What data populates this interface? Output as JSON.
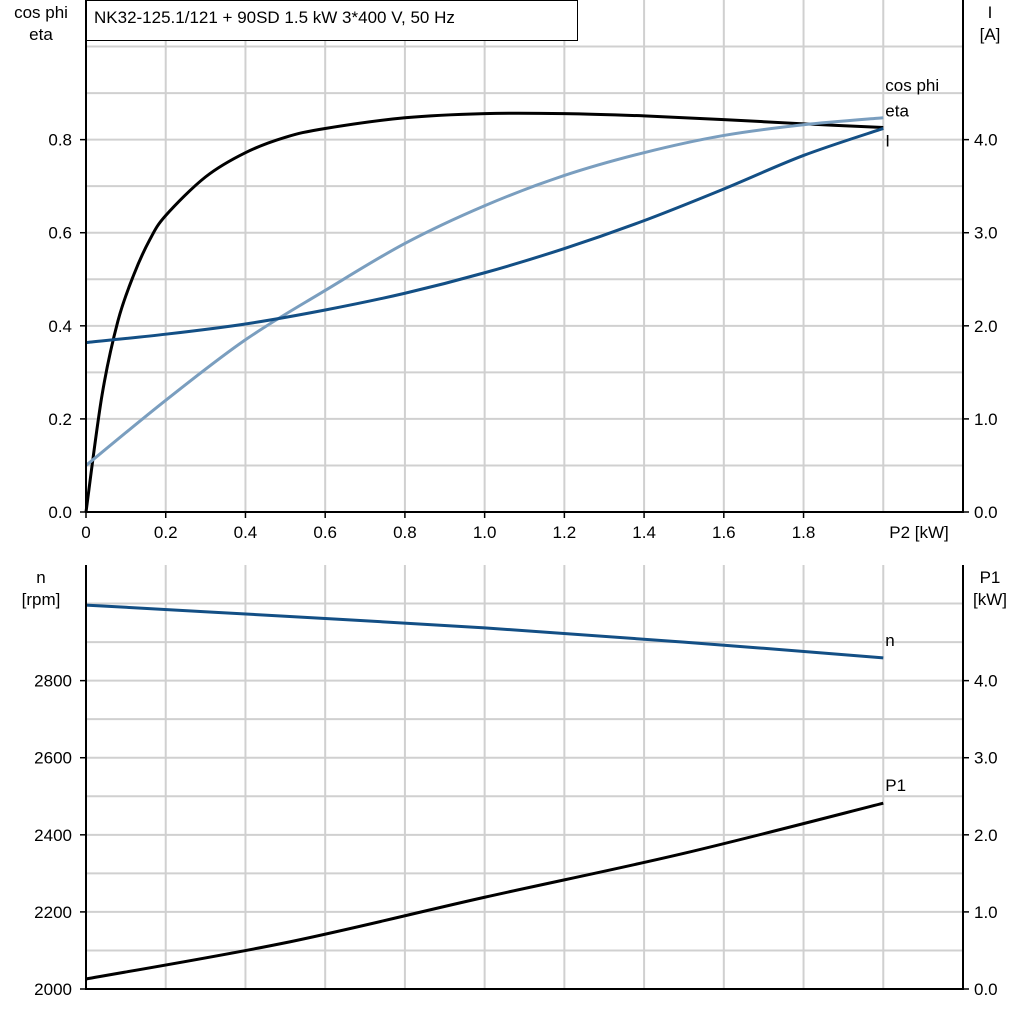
{
  "title": "NK32-125.1/121 + 90SD   1.5 kW   3*400 V, 50 Hz",
  "colors": {
    "eta": "#000000",
    "cos_phi": "#7a9ebf",
    "I": "#134f85",
    "n": "#134f85",
    "P1": "#000000",
    "grid": "#d0d0d0"
  },
  "chart_data": [
    {
      "type": "line",
      "xlabel": "P2 [kW]",
      "xlim": [
        0,
        2.2
      ],
      "xticks": [
        "0",
        "0.2",
        "0.4",
        "0.6",
        "0.8",
        "1.0",
        "1.2",
        "1.4",
        "1.6",
        "1.8"
      ],
      "ylabel_left": [
        "cos phi",
        "eta"
      ],
      "ylim_left": [
        0,
        1.1
      ],
      "yticks_left": [
        "0.0",
        "0.2",
        "0.4",
        "0.6",
        "0.8"
      ],
      "ylabel_right": [
        "I",
        "[A]"
      ],
      "ylim_right": [
        0,
        5.5
      ],
      "yticks_right": [
        "0.0",
        "1.0",
        "2.0",
        "3.0",
        "4.0"
      ],
      "grid": true,
      "x": [
        0,
        0.2,
        0.4,
        0.6,
        0.8,
        1.0,
        1.2,
        1.4,
        1.6,
        1.8,
        2.0
      ],
      "series": [
        {
          "name": "eta",
          "axis": "left",
          "x": [
            0,
            0.04,
            0.08,
            0.12,
            0.16,
            0.2,
            0.3,
            0.4,
            0.5,
            0.6,
            0.8,
            1.0,
            1.2,
            1.4,
            1.6,
            1.8,
            2.0
          ],
          "values": [
            0,
            0.25,
            0.41,
            0.51,
            0.585,
            0.637,
            0.72,
            0.772,
            0.805,
            0.824,
            0.847,
            0.856,
            0.856,
            0.851,
            0.843,
            0.834,
            0.826
          ]
        },
        {
          "name": "cos phi",
          "axis": "left",
          "values": [
            0.1,
            0.24,
            0.37,
            0.476,
            0.577,
            0.658,
            0.723,
            0.772,
            0.809,
            0.832,
            0.847
          ]
        },
        {
          "name": "I",
          "axis": "right",
          "values": [
            1.82,
            1.91,
            2.02,
            2.17,
            2.35,
            2.57,
            2.83,
            3.13,
            3.47,
            3.83,
            4.12
          ]
        }
      ]
    },
    {
      "type": "line",
      "xlim": [
        0,
        2.2
      ],
      "ylabel_left": [
        "n",
        "[rpm]"
      ],
      "ylim_left": [
        2000,
        3100
      ],
      "yticks_left": [
        "2000",
        "2200",
        "2400",
        "2600",
        "2800"
      ],
      "ylabel_right": [
        "P1",
        "[kW]"
      ],
      "ylim_right": [
        0,
        5.5
      ],
      "yticks_right": [
        "0.0",
        "1.0",
        "2.0",
        "3.0",
        "4.0"
      ],
      "grid": true,
      "x": [
        0,
        0.5,
        1.0,
        1.5,
        2.0
      ],
      "series": [
        {
          "name": "n",
          "axis": "left",
          "values": [
            2996,
            2967,
            2937,
            2900,
            2859
          ]
        },
        {
          "name": "P1",
          "axis": "right",
          "values": [
            0.13,
            0.6,
            1.19,
            1.76,
            2.41
          ]
        }
      ]
    }
  ]
}
